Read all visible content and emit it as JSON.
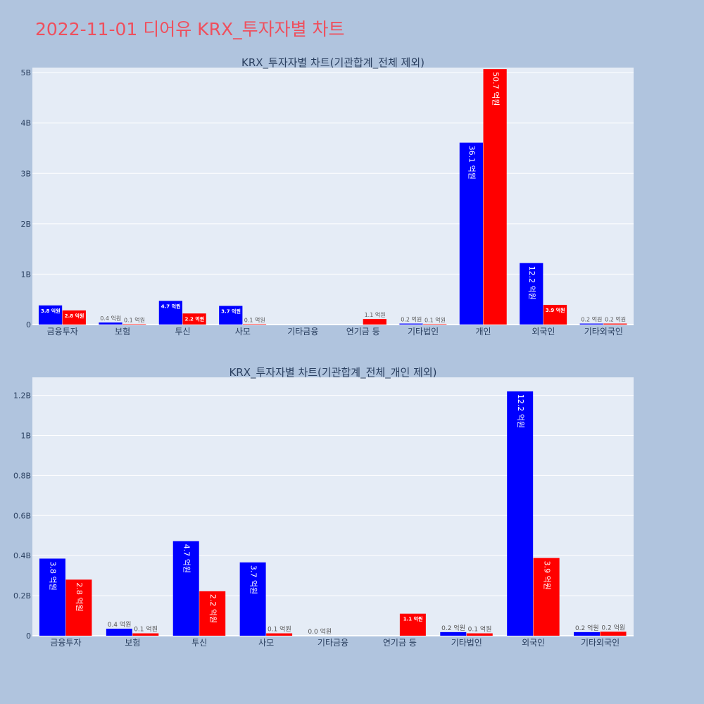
{
  "page_title": "2022-11-01 디어유 KRX_투자자별 차트",
  "colors": {
    "background": "#b0c4de",
    "plot_background": "#e5ecf6",
    "buy": "#0000ff",
    "sell": "#ff0000",
    "title": "#ef4f5d",
    "axis_text": "#2a3f5f"
  },
  "chart_data": [
    {
      "type": "bar",
      "title": "KRX_투자자별 차트(기관합계_전체 제외)",
      "categories": [
        "금융투자",
        "보험",
        "투신",
        "사모",
        "기타금융",
        "연기금 등",
        "기타법인",
        "개인",
        "외국인",
        "기타외국인"
      ],
      "series": [
        {
          "name": "buy",
          "color": "#0000ff",
          "values": [
            0.38,
            0.04,
            0.47,
            0.37,
            0.0,
            0.0,
            0.02,
            3.61,
            1.22,
            0.02
          ],
          "labels": [
            "3.8 억원",
            "0.4 억원",
            "4.7 억원",
            "3.7 억원",
            "",
            "",
            "0.2 억원",
            "36.1 억원",
            "12.2 억원",
            "0.2 억원"
          ]
        },
        {
          "name": "sell",
          "color": "#ff0000",
          "values": [
            0.28,
            0.01,
            0.22,
            0.01,
            0.0,
            0.11,
            0.01,
            5.07,
            0.39,
            0.02
          ],
          "labels": [
            "2.8 억원",
            "0.1 억원",
            "2.2 억원",
            "0.1 억원",
            "",
            "1.1 억원",
            "0.1 억원",
            "50.7 억원",
            "3.9 억원",
            "0.2 억원"
          ]
        }
      ],
      "y_ticks": [
        0,
        1,
        2,
        3,
        4,
        5
      ],
      "y_tick_labels": [
        "0",
        "1B",
        "2B",
        "3B",
        "4B",
        "5B"
      ],
      "ylim": [
        0,
        5.1
      ],
      "unit": "B",
      "grid": true
    },
    {
      "type": "bar",
      "title": "KRX_투자자별 차트(기관합계_전체_개인 제외)",
      "categories": [
        "금융투자",
        "보험",
        "투신",
        "사모",
        "기타금융",
        "연기금 등",
        "기타법인",
        "외국인",
        "기타외국인"
      ],
      "series": [
        {
          "name": "buy",
          "color": "#0000ff",
          "values": [
            0.385,
            0.035,
            0.472,
            0.366,
            0.0,
            0.0,
            0.018,
            1.22,
            0.018
          ],
          "labels": [
            "3.8 억원",
            "0.4 억원",
            "4.7 억원",
            "3.7 억원",
            "0.0 억원",
            "",
            "0.2 억원",
            "12.2 억원",
            "0.2 억원"
          ]
        },
        {
          "name": "sell",
          "color": "#ff0000",
          "values": [
            0.28,
            0.012,
            0.222,
            0.012,
            0.0,
            0.11,
            0.012,
            0.388,
            0.02
          ],
          "labels": [
            "2.8 억원",
            "0.1 억원",
            "2.2 억원",
            "0.1 억원",
            "",
            "1.1 억원",
            "0.1 억원",
            "3.9 억원",
            "0.2 억원"
          ]
        }
      ],
      "y_ticks": [
        0,
        0.2,
        0.4,
        0.6,
        0.8,
        1.0,
        1.2
      ],
      "y_tick_labels": [
        "0",
        "0.2B",
        "0.4B",
        "0.6B",
        "0.8B",
        "1B",
        "1.2B"
      ],
      "ylim": [
        0,
        1.29
      ],
      "unit": "B",
      "grid": true
    }
  ]
}
